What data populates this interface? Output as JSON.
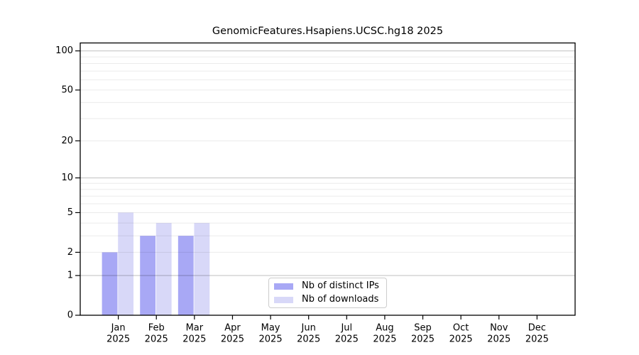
{
  "title": "GenomicFeatures.Hsapiens.UCSC.hg18 2025",
  "legend": {
    "items": [
      {
        "label": "Nb of distinct IPs",
        "color": "#a8a8f5"
      },
      {
        "label": "Nb of downloads",
        "color": "#d8d8f8"
      }
    ]
  },
  "chart_data": {
    "type": "bar",
    "title": "GenomicFeatures.Hsapiens.UCSC.hg18 2025",
    "categories": [
      "Jan 2025",
      "Feb 2025",
      "Mar 2025",
      "Apr 2025",
      "May 2025",
      "Jun 2025",
      "Jul 2025",
      "Aug 2025",
      "Sep 2025",
      "Oct 2025",
      "Nov 2025",
      "Dec 2025"
    ],
    "series": [
      {
        "name": "Nb of distinct IPs",
        "color": "#a8a8f5",
        "values": [
          2,
          3,
          3,
          0,
          0,
          0,
          0,
          0,
          0,
          0,
          0,
          0
        ]
      },
      {
        "name": "Nb of downloads",
        "color": "#d8d8f8",
        "values": [
          5,
          4,
          4,
          0,
          0,
          0,
          0,
          0,
          0,
          0,
          0,
          0
        ]
      }
    ],
    "xlabel": "",
    "ylabel": "",
    "yscale": "log1p",
    "ylim": [
      0,
      115
    ],
    "yticks": [
      0,
      1,
      2,
      5,
      10,
      20,
      50,
      100
    ],
    "gridline_values": [
      1,
      2,
      3,
      4,
      5,
      6,
      7,
      8,
      9,
      10,
      20,
      30,
      40,
      50,
      60,
      70,
      80,
      90,
      100
    ],
    "decade_gridlines": [
      1,
      10,
      100
    ],
    "grid": "horizontal, drawn over bars",
    "legend_position": "lower center, inside axes"
  },
  "colors": {
    "axis": "#000000",
    "grid_decade": "rgba(0,0,0,0.22)",
    "grid_minor": "rgba(0,0,0,0.08)",
    "legend_border": "#cccccc",
    "text": "#000000",
    "background": "#ffffff"
  }
}
